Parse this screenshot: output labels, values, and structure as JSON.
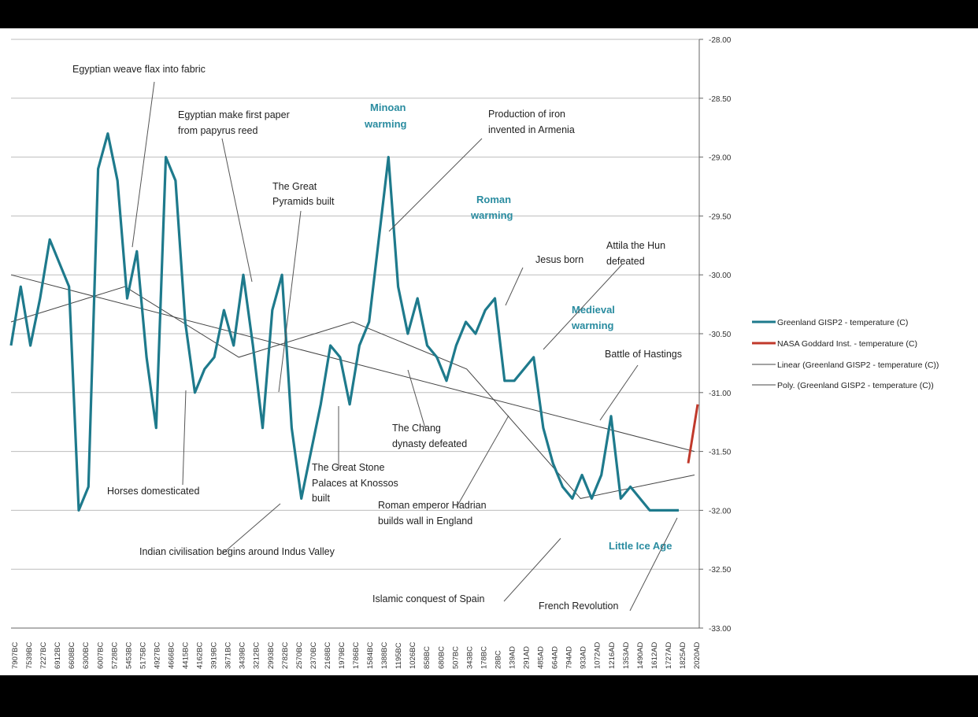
{
  "chart_data": {
    "type": "line",
    "title": "",
    "xlabel": "",
    "ylabel": "",
    "ylim": [
      -33.0,
      -28.0
    ],
    "y_ticks": [
      "-28.00",
      "-28.50",
      "-29.00",
      "-29.50",
      "-30.00",
      "-30.50",
      "-31.00",
      "-31.50",
      "-32.00",
      "-32.50",
      "-33.00"
    ],
    "x_tick_labels": [
      "7907BC",
      "7539BC",
      "7227BC",
      "6912BC",
      "6608BC",
      "6300BC",
      "6007BC",
      "5728BC",
      "5453BC",
      "5175BC",
      "4927BC",
      "4666BC",
      "4415BC",
      "4162BC",
      "3919BC",
      "3671BC",
      "3439BC",
      "3212BC",
      "2993BC",
      "2782BC",
      "2570BC",
      "2370BC",
      "2168BC",
      "1979BC",
      "1786BC",
      "1584BC",
      "1388BC",
      "1195BC",
      "1026BC",
      "858BC",
      "680BC",
      "507BC",
      "343BC",
      "178BC",
      "28BC",
      "139AD",
      "291AD",
      "485AD",
      "664AD",
      "794AD",
      "933AD",
      "1072AD",
      "1216AD",
      "1353AD",
      "1490AD",
      "1612AD",
      "1727AD",
      "1825AD",
      "2020AD"
    ],
    "grid": true,
    "legend_position": "right",
    "series": [
      {
        "name": "Greenland GISP2 - temperature (C)",
        "color": "#1e7a8c",
        "values": [
          -30.6,
          -30.1,
          -30.6,
          -30.2,
          -29.7,
          -29.9,
          -30.1,
          -32.0,
          -31.8,
          -29.1,
          -28.8,
          -29.2,
          -30.2,
          -29.8,
          -30.7,
          -31.3,
          -29.0,
          -29.2,
          -30.4,
          -31.0,
          -30.8,
          -30.7,
          -30.3,
          -30.6,
          -30.0,
          -30.6,
          -31.3,
          -30.3,
          -30.0,
          -31.3,
          -31.9,
          -31.5,
          -31.1,
          -30.6,
          -30.7,
          -31.1,
          -30.6,
          -30.4,
          -29.7,
          -29.0,
          -30.1,
          -30.5,
          -30.2,
          -30.6,
          -30.7,
          -30.9,
          -30.6,
          -30.4,
          -30.5,
          -30.3,
          -30.2,
          -30.9,
          -30.9,
          -30.8,
          -30.7,
          -31.3,
          -31.6,
          -31.8,
          -31.9,
          -31.7,
          -31.9,
          -31.7,
          -31.2,
          -31.9,
          -31.8,
          -31.9,
          -32.0,
          -32.0,
          -32.0,
          -32.0
        ]
      },
      {
        "name": "NASA Goddard Inst. - temperature (C)",
        "color": "#c0392b",
        "values": [
          -31.6,
          -31.1
        ]
      },
      {
        "name": "Linear (Greenland GISP2 - temperature (C))",
        "color": "#444444",
        "values": [
          -30.0,
          -31.5
        ]
      },
      {
        "name": "Poly. (Greenland GISP2 - temperature (C))",
        "color": "#444444",
        "values": [
          -30.4,
          -30.1,
          -30.7,
          -30.4,
          -30.8,
          -31.9,
          -31.7
        ]
      }
    ],
    "annotations": [
      "Egyptian weave flax into fabric",
      "Egyptian make first paper",
      "from papyrus reed",
      "Minoan",
      "warming",
      "Production of iron",
      "invented in Armenia",
      "The Great",
      "Pyramids built",
      "Roman",
      "warming",
      "Attila the Hun",
      "defeated",
      "Jesus born",
      "Medieval",
      "warming",
      "Battle of Hastings",
      "The Chang",
      "dynasty defeated",
      "The Great Stone",
      "Palaces at Knossos",
      "built",
      "Horses domesticated",
      "Roman emperor Hadrian",
      "builds wall in England",
      "Indian civilisation begins around Indus Valley",
      "Islamic conquest of Spain",
      "French Revolution",
      "Little Ice Age"
    ]
  }
}
